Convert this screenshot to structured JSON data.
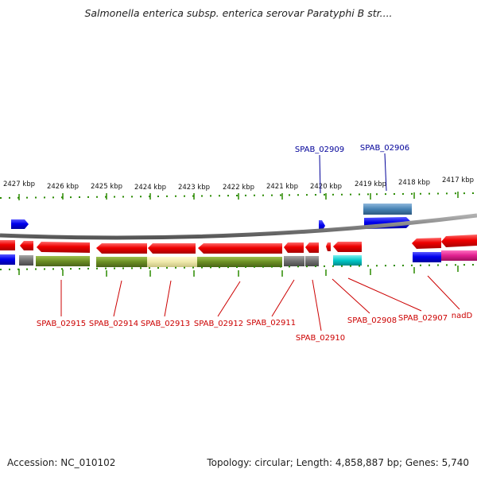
{
  "title": "Salmonella enterica subsp. enterica serovar Paratyphi B str....",
  "accession": "Accession: NC_010102",
  "summary": "Topology: circular; Length: 4,858,887 bp; Genes: 5,740",
  "colors": {
    "red": "#ee0000",
    "blue": "#0000ee",
    "olive": "#6b8e23",
    "khaki": "#eee8aa",
    "gray": "#707070",
    "cyan": "#00c8c8",
    "magenta": "#e0208f",
    "steel": "#4682b4",
    "label_red": "#cc0000",
    "label_blue": "#000099",
    "tick_green": "#2a8a00"
  },
  "scale_labels": [
    "2427 kbp",
    "2426 kbp",
    "2425 kbp",
    "2424 kbp",
    "2423 kbp",
    "2422 kbp",
    "2421 kbp",
    "2420 kbp",
    "2419 kbp",
    "2418 kbp",
    "2417 kbp"
  ],
  "top_labels": [
    {
      "id": "spab-02909",
      "text": "SPAB_02909"
    },
    {
      "id": "spab-02906",
      "text": "SPAB_02906"
    }
  ],
  "bottom_labels": [
    {
      "id": "spab-02915",
      "text": "SPAB_02915"
    },
    {
      "id": "spab-02914",
      "text": "SPAB_02914"
    },
    {
      "id": "spab-02913",
      "text": "SPAB_02913"
    },
    {
      "id": "spab-02912",
      "text": "SPAB_02912"
    },
    {
      "id": "spab-02911",
      "text": "SPAB_02911"
    },
    {
      "id": "spab-02910",
      "text": "SPAB_02910"
    },
    {
      "id": "spab-02908",
      "text": "SPAB_02908"
    },
    {
      "id": "spab-02907",
      "text": "SPAB_02907"
    },
    {
      "id": "nadd",
      "text": "nadD"
    }
  ]
}
